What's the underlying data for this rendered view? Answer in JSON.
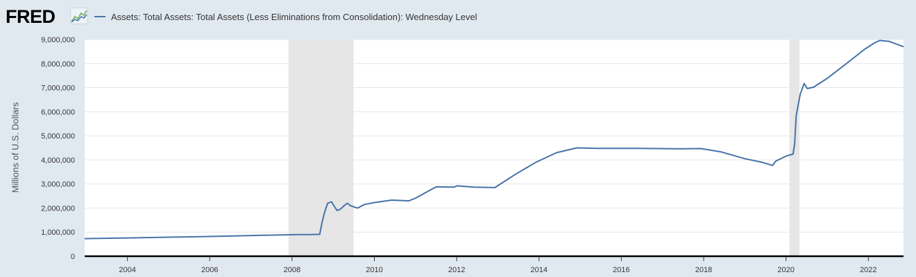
{
  "header": {
    "logo_text": "FRED",
    "logo_icon": "line-graph-icon",
    "legend_label": "Assets: Total Assets: Total Assets (Less Eliminations from Consolidation): Wednesday Level"
  },
  "colors": {
    "background": "#e1e9f0",
    "plot_background": "#ffffff",
    "series": "#4572a7",
    "recession": "#e6e6e6",
    "grid": "#e6e6e6"
  },
  "chart_data": {
    "type": "line",
    "title": "",
    "ylabel": "Millions of U.S. Dollars",
    "xlabel": "",
    "ylim": [
      0,
      9000000
    ],
    "xlim": [
      "2002-12-18",
      "2022-11-09"
    ],
    "grid": true,
    "y_ticks": [
      "0",
      "1,000,000",
      "2,000,000",
      "3,000,000",
      "4,000,000",
      "5,000,000",
      "6,000,000",
      "7,000,000",
      "8,000,000",
      "9,000,000"
    ],
    "x_ticks": [
      "2004",
      "2006",
      "2008",
      "2010",
      "2012",
      "2014",
      "2016",
      "2018",
      "2020",
      "2022"
    ],
    "recessions": [
      [
        "2007-12-01",
        "2009-06-30"
      ],
      [
        "2020-02-01",
        "2020-04-30"
      ]
    ],
    "series": [
      {
        "name": "Assets: Total Assets: Total Assets (Less Eliminations from Consolidation): Wednesday Level",
        "points": [
          [
            "2002-12-18",
            730000
          ],
          [
            "2004-01-01",
            760000
          ],
          [
            "2005-01-01",
            790000
          ],
          [
            "2006-01-01",
            820000
          ],
          [
            "2007-01-01",
            860000
          ],
          [
            "2007-12-01",
            890000
          ],
          [
            "2008-03-01",
            900000
          ],
          [
            "2008-06-01",
            900000
          ],
          [
            "2008-09-03",
            910000
          ],
          [
            "2008-09-24",
            1400000
          ],
          [
            "2008-10-15",
            1800000
          ],
          [
            "2008-11-12",
            2200000
          ],
          [
            "2008-12-17",
            2260000
          ],
          [
            "2009-01-07",
            2100000
          ],
          [
            "2009-02-04",
            1900000
          ],
          [
            "2009-03-04",
            1950000
          ],
          [
            "2009-04-08",
            2100000
          ],
          [
            "2009-05-06",
            2200000
          ],
          [
            "2009-06-03",
            2100000
          ],
          [
            "2009-07-01",
            2050000
          ],
          [
            "2009-08-05",
            2000000
          ],
          [
            "2009-10-07",
            2150000
          ],
          [
            "2010-01-06",
            2230000
          ],
          [
            "2010-06-02",
            2330000
          ],
          [
            "2010-11-03",
            2300000
          ],
          [
            "2011-01-05",
            2420000
          ],
          [
            "2011-06-01",
            2800000
          ],
          [
            "2011-07-06",
            2880000
          ],
          [
            "2011-12-07",
            2870000
          ],
          [
            "2012-01-04",
            2920000
          ],
          [
            "2012-06-06",
            2870000
          ],
          [
            "2012-12-05",
            2850000
          ],
          [
            "2013-06-05",
            3400000
          ],
          [
            "2013-12-04",
            3900000
          ],
          [
            "2014-06-04",
            4300000
          ],
          [
            "2014-12-03",
            4500000
          ],
          [
            "2015-06-03",
            4480000
          ],
          [
            "2016-06-01",
            4480000
          ],
          [
            "2017-06-07",
            4460000
          ],
          [
            "2017-12-06",
            4470000
          ],
          [
            "2018-06-06",
            4330000
          ],
          [
            "2019-01-02",
            4050000
          ],
          [
            "2019-06-05",
            3900000
          ],
          [
            "2019-09-04",
            3770000
          ],
          [
            "2019-10-02",
            3950000
          ],
          [
            "2020-01-08",
            4170000
          ],
          [
            "2020-03-04",
            4240000
          ],
          [
            "2020-03-18",
            4670000
          ],
          [
            "2020-04-01",
            5850000
          ],
          [
            "2020-05-06",
            6720000
          ],
          [
            "2020-06-10",
            7170000
          ],
          [
            "2020-07-08",
            6960000
          ],
          [
            "2020-09-02",
            7020000
          ],
          [
            "2021-01-06",
            7400000
          ],
          [
            "2021-06-02",
            7930000
          ],
          [
            "2021-12-01",
            8600000
          ],
          [
            "2022-03-02",
            8870000
          ],
          [
            "2022-04-13",
            8960000
          ],
          [
            "2022-07-06",
            8920000
          ],
          [
            "2022-11-09",
            8700000
          ]
        ]
      }
    ]
  }
}
